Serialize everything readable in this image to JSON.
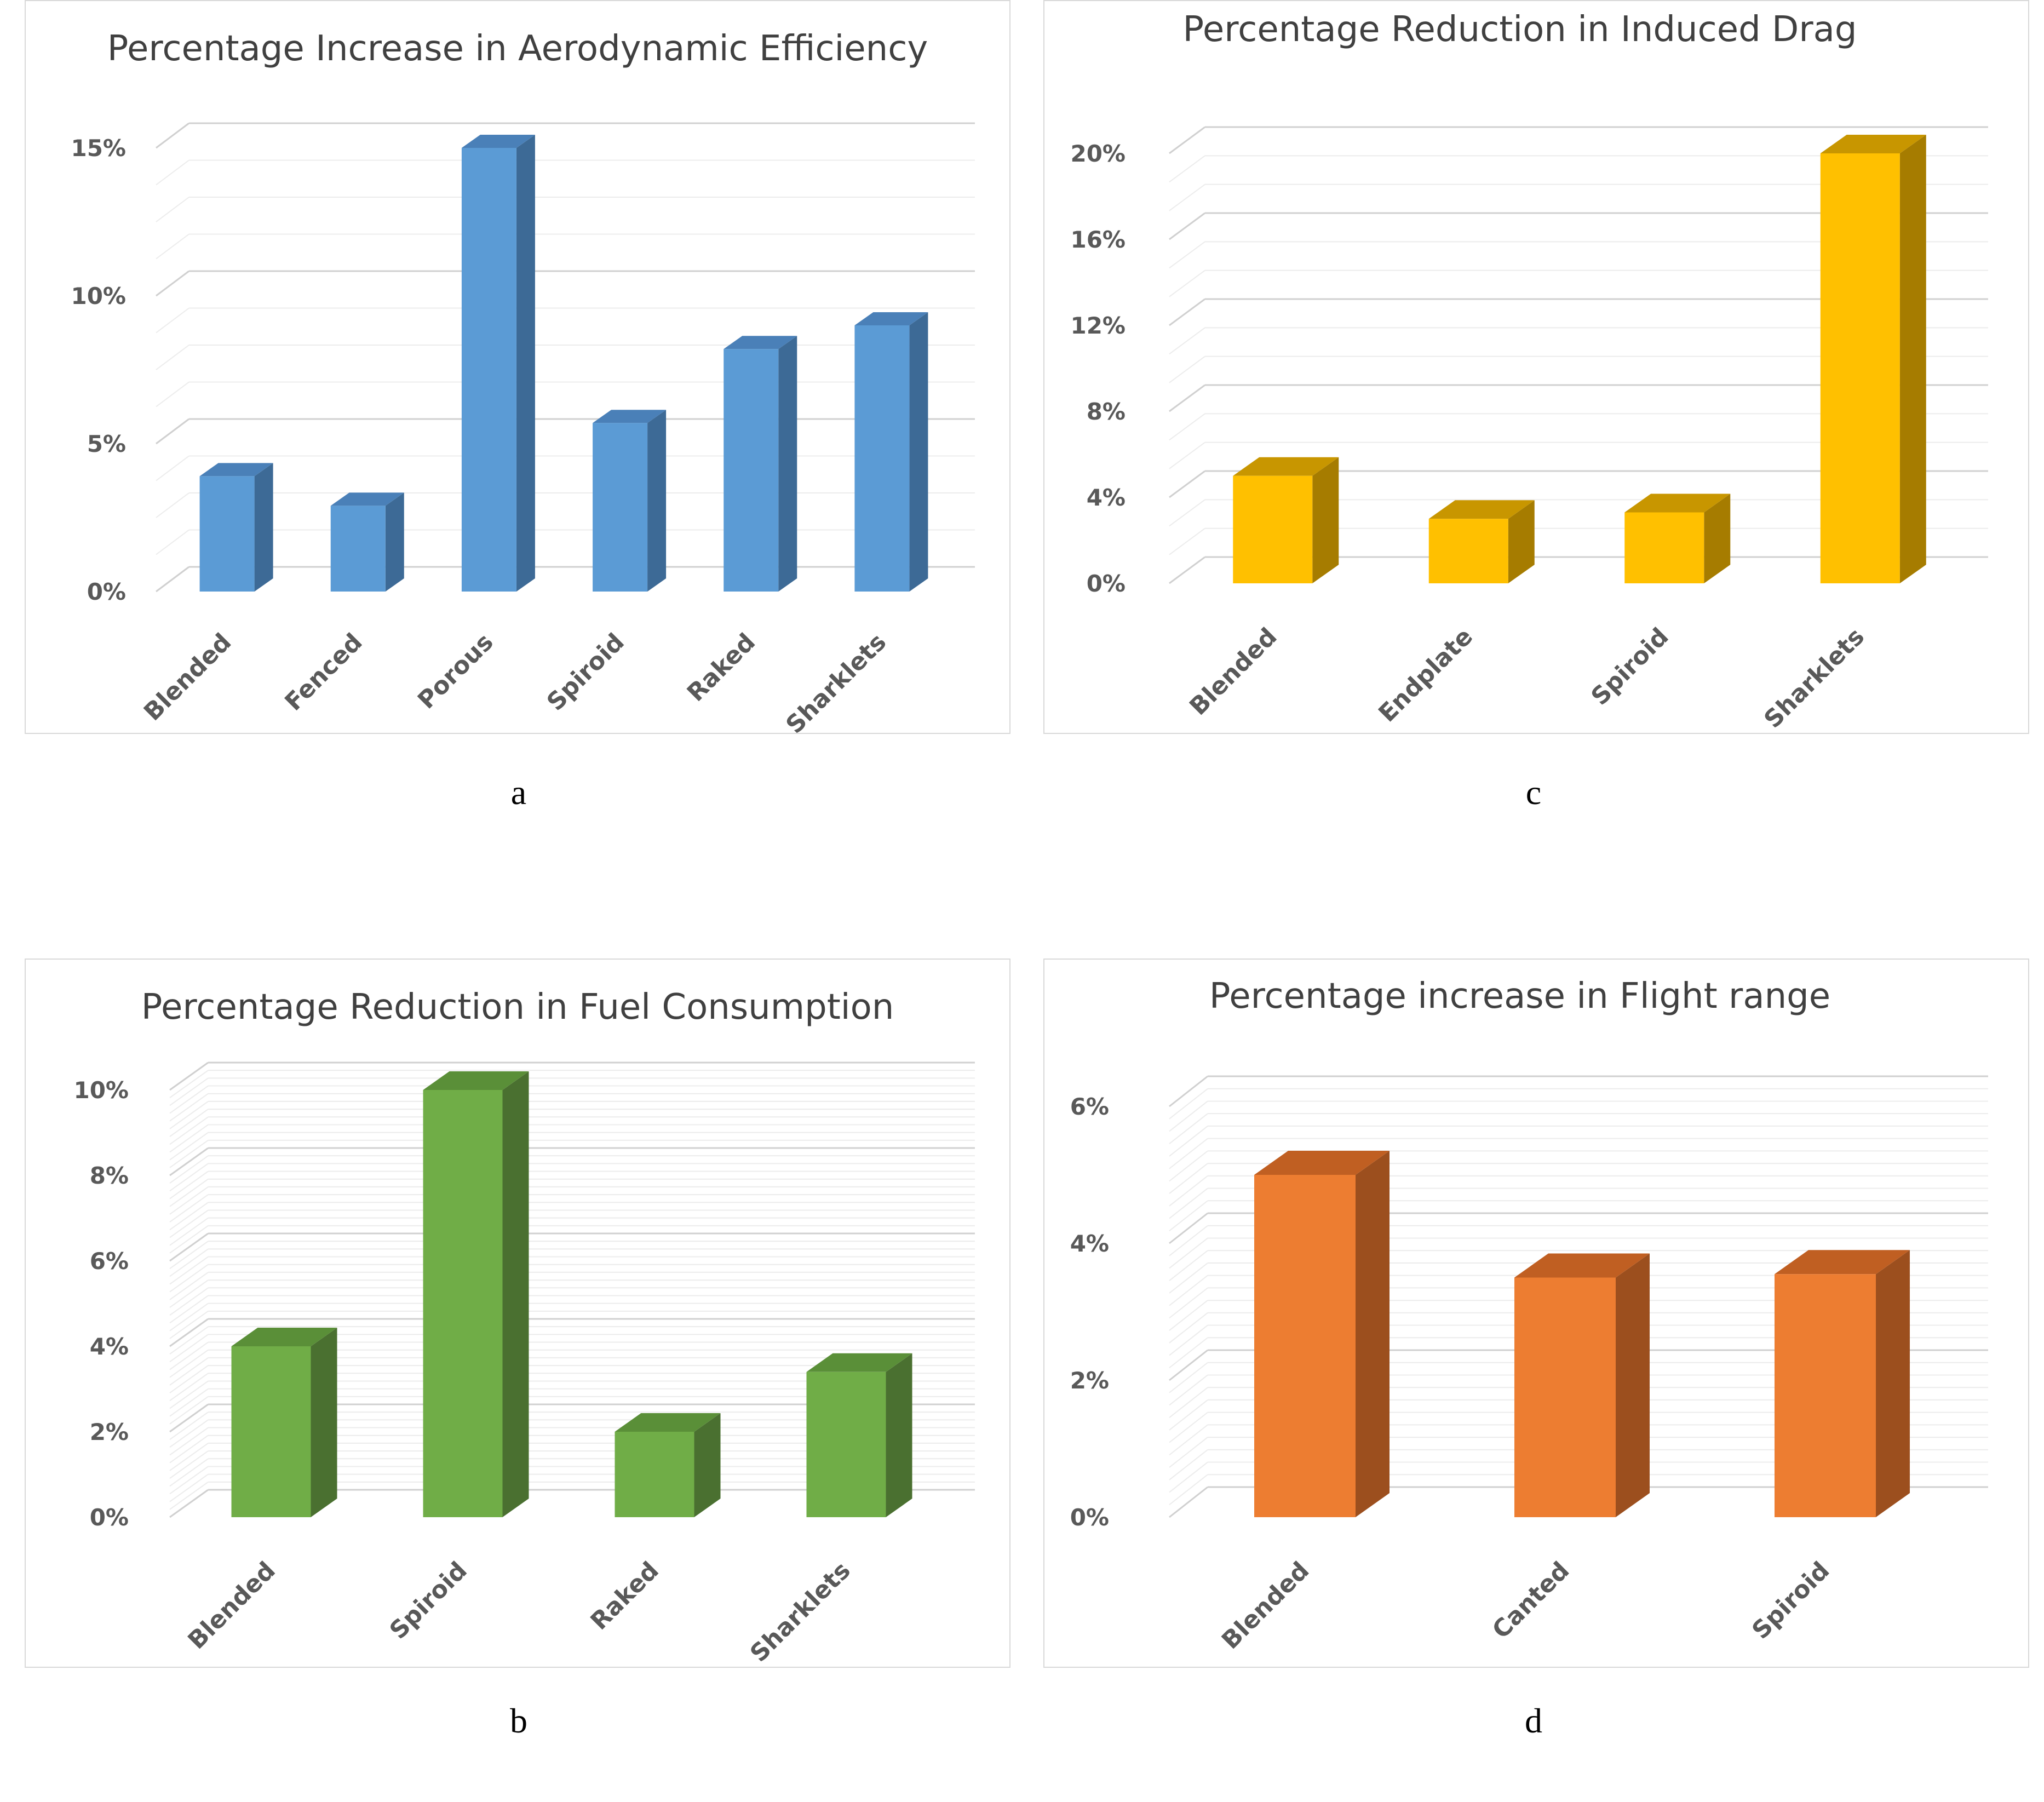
{
  "chart_data": [
    {
      "id": "a",
      "type": "bar",
      "title": "Percentage Increase in Aerodynamic Efficiency",
      "caption": "a",
      "categories": [
        "Blended",
        "Fenced",
        "Porous",
        "Spiroid",
        "Raked",
        "Sharklets"
      ],
      "values": [
        3.9,
        2.9,
        15,
        5.7,
        8.2,
        9.0
      ],
      "yticks": [
        0,
        5,
        10,
        15
      ],
      "ytick_labels": [
        "0%",
        "5%",
        "10%",
        "15%"
      ],
      "ylim": [
        0,
        15
      ],
      "minor_gridlines": 3,
      "color_front": "#5b9bd5",
      "color_side": "#3d6a96",
      "color_top": "#4a80b8",
      "xlabel": "",
      "ylabel": ""
    },
    {
      "id": "c",
      "type": "bar",
      "title": "Percentage Reduction in Induced Drag",
      "caption": "c",
      "categories": [
        "Blended",
        "Endplate",
        "Spiroid",
        "Sharklets"
      ],
      "values": [
        5.0,
        3.0,
        3.3,
        20
      ],
      "yticks": [
        0,
        4,
        8,
        12,
        16,
        20
      ],
      "ytick_labels": [
        "0%",
        "4%",
        "8%",
        "12%",
        "16%",
        "20%"
      ],
      "ylim": [
        0,
        20
      ],
      "minor_gridlines": 2,
      "color_front": "#ffc000",
      "color_side": "#a67c00",
      "color_top": "#c89600",
      "xlabel": "",
      "ylabel": ""
    },
    {
      "id": "b",
      "type": "bar",
      "title": "Percentage Reduction in Fuel Consumption",
      "caption": "b",
      "categories": [
        "Blended",
        "Spiroid",
        "Raked",
        "Sharklets"
      ],
      "values": [
        4.0,
        10.0,
        2.0,
        3.4
      ],
      "yticks": [
        0,
        2,
        4,
        6,
        8,
        10
      ],
      "ytick_labels": [
        "0%",
        "2%",
        "4%",
        "6%",
        "8%",
        "10%"
      ],
      "ylim": [
        0,
        10
      ],
      "minor_gridlines": 10,
      "color_front": "#70ad47",
      "color_side": "#4a7030",
      "color_top": "#5a8f38",
      "xlabel": "",
      "ylabel": ""
    },
    {
      "id": "d",
      "type": "bar",
      "title": "Percentage increase in Flight range",
      "caption": "d",
      "categories": [
        "Blended",
        "Canted",
        "Spiroid"
      ],
      "values": [
        5.0,
        3.5,
        3.55
      ],
      "yticks": [
        0,
        2,
        4,
        6
      ],
      "ytick_labels": [
        "0%",
        "2%",
        "4%",
        "6%"
      ],
      "ylim": [
        0,
        6
      ],
      "minor_gridlines": 10,
      "color_front": "#ed7d31",
      "color_side": "#9c4f1e",
      "color_top": "#c05f22",
      "xlabel": "",
      "ylabel": ""
    }
  ]
}
